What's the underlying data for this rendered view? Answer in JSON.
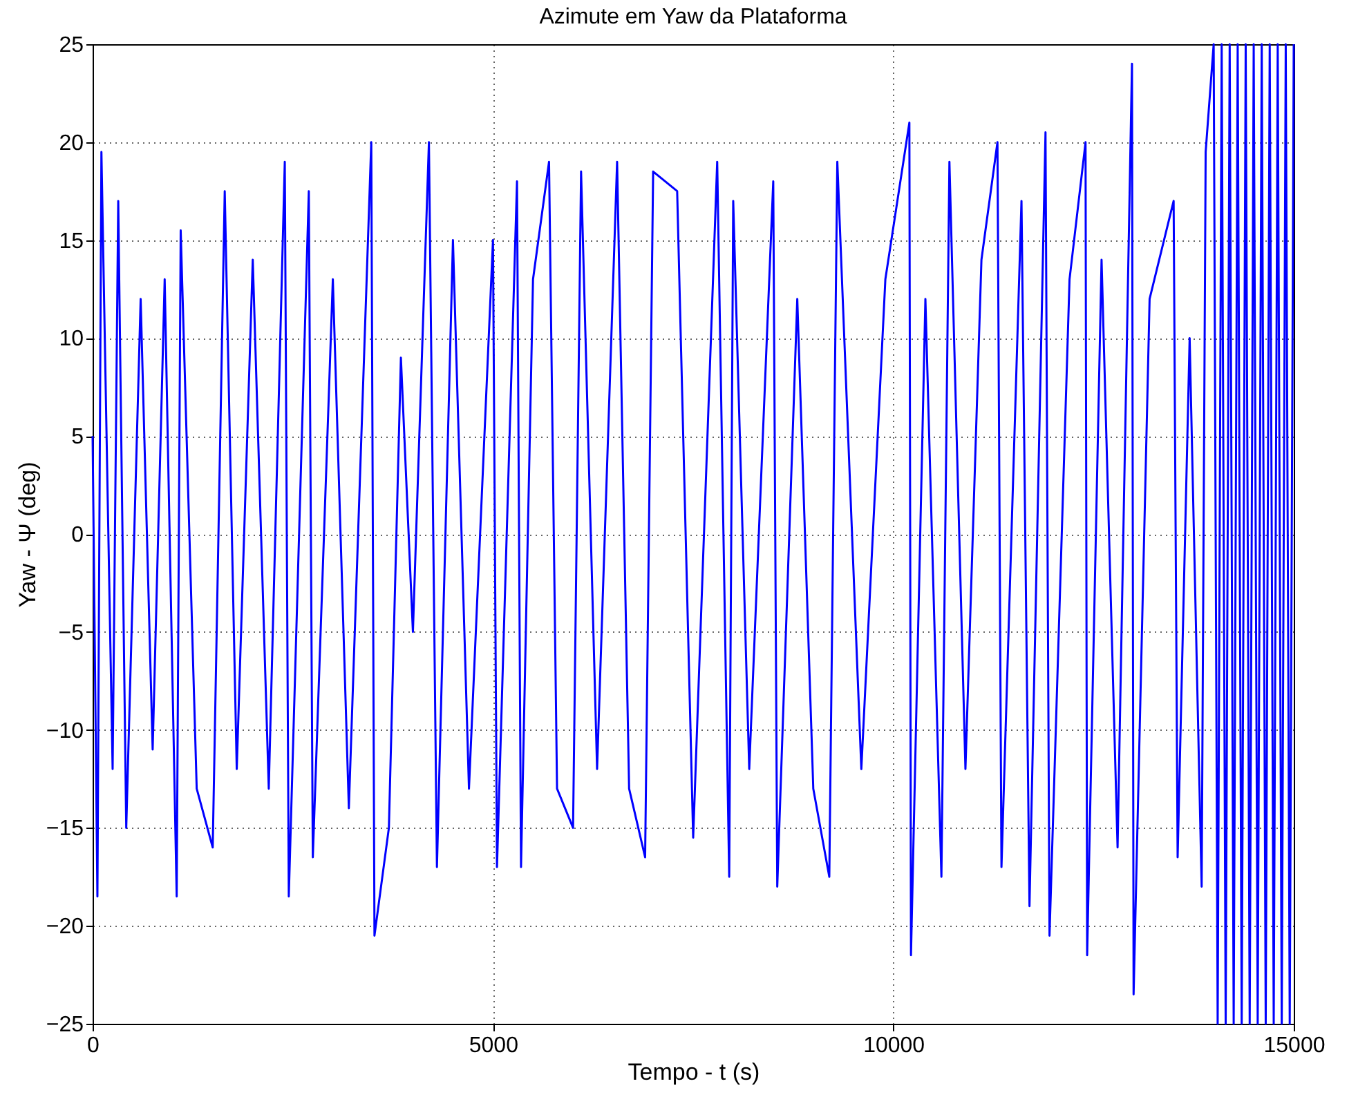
{
  "chart_data": {
    "type": "line",
    "title": "Azimute em Yaw da Plataforma",
    "xlabel": "Tempo - t (s)",
    "ylabel": "Yaw - Ψ (deg)",
    "x": [
      0,
      60,
      110,
      250,
      320,
      420,
      600,
      750,
      900,
      1050,
      1100,
      1300,
      1500,
      1650,
      1800,
      2000,
      2200,
      2400,
      2450,
      2700,
      2750,
      3000,
      3200,
      3480,
      3520,
      3700,
      3850,
      4000,
      4200,
      4300,
      4500,
      4700,
      5000,
      5050,
      5300,
      5350,
      5500,
      5700,
      5800,
      6000,
      6100,
      6300,
      6550,
      6700,
      6900,
      7000,
      7300,
      7500,
      7800,
      7950,
      8000,
      8200,
      8500,
      8550,
      8800,
      9000,
      9200,
      9300,
      9600,
      9900,
      10200,
      10220,
      10400,
      10600,
      10700,
      10900,
      11100,
      11300,
      11350,
      11600,
      11700,
      11900,
      11950,
      12200,
      12400,
      12420,
      12600,
      12800,
      12980,
      13000,
      13200,
      13500,
      13550,
      13700,
      13850,
      13900,
      14000,
      14050,
      14100,
      14150,
      14200,
      14250,
      14300,
      14350,
      14400,
      14450,
      14500,
      14550,
      14600,
      14650,
      14700,
      14750,
      14800,
      14850,
      14900,
      14950,
      15000
    ],
    "series": [
      {
        "color": "#0000ff",
        "values": [
          5,
          -18.5,
          19.5,
          -12,
          17,
          -15,
          12,
          -11,
          13,
          -18.5,
          15.5,
          -13,
          -16,
          17.5,
          -12,
          14,
          -13,
          19,
          -18.5,
          17.5,
          -16.5,
          13,
          -14,
          20,
          -20.5,
          -15,
          9,
          -5,
          20,
          -17,
          15,
          -13,
          15,
          -17,
          18,
          -17,
          13,
          19,
          -13,
          -15,
          18.5,
          -12,
          19,
          -13,
          -16.5,
          18.5,
          17.5,
          -15.5,
          19,
          -17.5,
          17,
          -12,
          18,
          -18,
          12,
          -13,
          -17.5,
          19,
          -12,
          13,
          21,
          -21.5,
          12,
          -17.5,
          19,
          -12,
          14,
          20,
          -17,
          17,
          -19,
          20.5,
          -20.5,
          13,
          20,
          -21.5,
          14,
          -16,
          24,
          -23.5,
          12,
          17,
          -16.5,
          10,
          -18,
          19.5,
          25,
          -25,
          25,
          -25,
          25,
          -25,
          25,
          -25,
          25,
          -25,
          25,
          -25,
          25,
          -25,
          25,
          -25,
          25,
          -25,
          25,
          -25,
          25
        ]
      }
    ],
    "xlim": [
      0,
      15000
    ],
    "xticks": [
      0,
      5000,
      10000,
      15000
    ],
    "ylim": [
      -25,
      25
    ],
    "yticks": [
      -25,
      -20,
      -15,
      -10,
      -5,
      0,
      5,
      10,
      15,
      20,
      25
    ],
    "grid": true,
    "line_style": "solid",
    "marker": "none"
  }
}
